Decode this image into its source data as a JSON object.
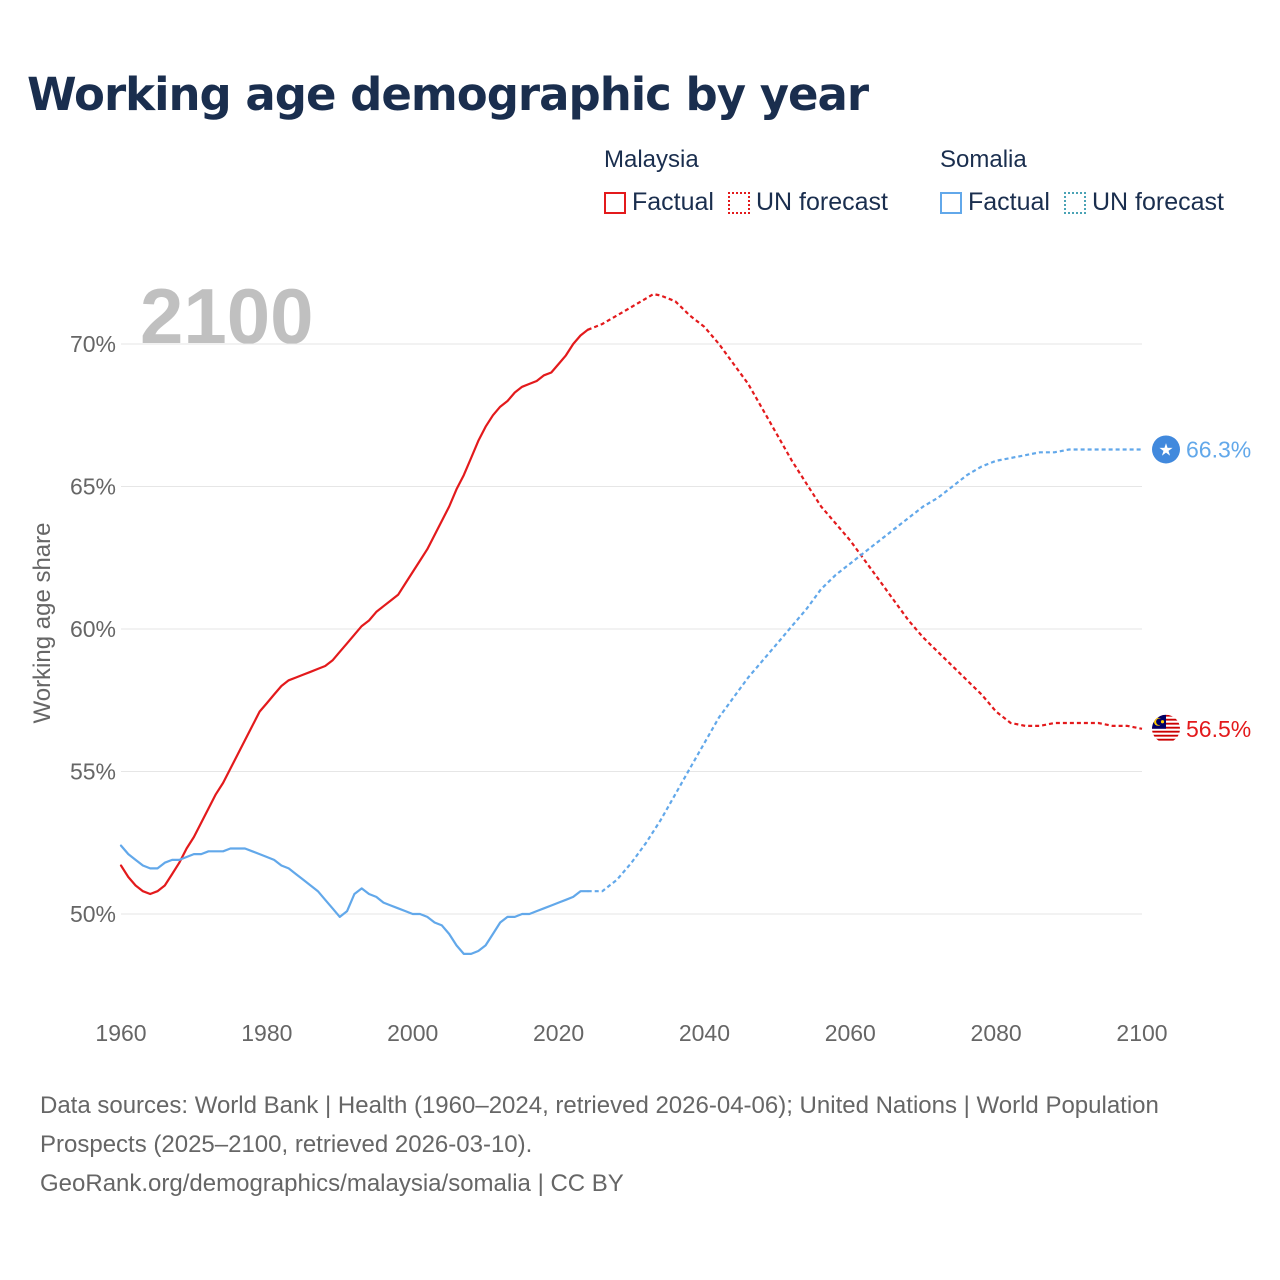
{
  "title": "Working age demographic by year",
  "legend": {
    "malaysia": {
      "country": "Malaysia",
      "factual": "Factual",
      "forecast": "UN forecast",
      "color": "#e31a1c"
    },
    "somalia": {
      "country": "Somalia",
      "factual": "Factual",
      "forecast": "UN forecast",
      "color": "#62a8ea"
    }
  },
  "footer": {
    "sources": "Data sources: World Bank | Health (1960–2024, retrieved 2026-04-06); United Nations | World Population Prospects (2025–2100, retrieved 2026-03-10).",
    "link": "GeoRank.org/demographics/malaysia/somalia | CC BY"
  },
  "chart_data": {
    "type": "line",
    "title": "Working age demographic by year",
    "year_label": "2100",
    "xlabel": "",
    "ylabel": "Working age share",
    "xlim": [
      1960,
      2100
    ],
    "ylim": [
      47,
      72.5
    ],
    "x_ticks": [
      1960,
      1980,
      2000,
      2020,
      2040,
      2060,
      2080,
      2100
    ],
    "y_ticks": [
      50,
      55,
      60,
      65,
      70
    ],
    "y_tick_labels": [
      "50%",
      "55%",
      "60%",
      "65%",
      "70%"
    ],
    "grid": true,
    "series": [
      {
        "name": "Malaysia — Factual",
        "country": "Malaysia",
        "kind": "factual",
        "color": "#e31a1c",
        "x": [
          1960,
          1961,
          1962,
          1963,
          1964,
          1965,
          1966,
          1967,
          1968,
          1969,
          1970,
          1971,
          1972,
          1973,
          1974,
          1975,
          1976,
          1977,
          1978,
          1979,
          1980,
          1981,
          1982,
          1983,
          1984,
          1985,
          1986,
          1987,
          1988,
          1989,
          1990,
          1991,
          1992,
          1993,
          1994,
          1995,
          1996,
          1997,
          1998,
          1999,
          2000,
          2001,
          2002,
          2003,
          2004,
          2005,
          2006,
          2007,
          2008,
          2009,
          2010,
          2011,
          2012,
          2013,
          2014,
          2015,
          2016,
          2017,
          2018,
          2019,
          2020,
          2021,
          2022,
          2023,
          2024
        ],
        "y": [
          51.7,
          51.3,
          51.0,
          50.8,
          50.7,
          50.8,
          51.0,
          51.4,
          51.8,
          52.3,
          52.7,
          53.2,
          53.7,
          54.2,
          54.6,
          55.1,
          55.6,
          56.1,
          56.6,
          57.1,
          57.4,
          57.7,
          58.0,
          58.2,
          58.3,
          58.4,
          58.5,
          58.6,
          58.7,
          58.9,
          59.2,
          59.5,
          59.8,
          60.1,
          60.3,
          60.6,
          60.8,
          61.0,
          61.2,
          61.6,
          62.0,
          62.4,
          62.8,
          63.3,
          63.8,
          64.3,
          64.9,
          65.4,
          66.0,
          66.6,
          67.1,
          67.5,
          67.8,
          68.0,
          68.3,
          68.5,
          68.6,
          68.7,
          68.9,
          69.0,
          69.3,
          69.6,
          70.0,
          70.3,
          70.5
        ]
      },
      {
        "name": "Malaysia — UN forecast",
        "country": "Malaysia",
        "kind": "forecast",
        "color": "#e31a1c",
        "x": [
          2024,
          2026,
          2028,
          2030,
          2032,
          2033,
          2034,
          2036,
          2038,
          2040,
          2042,
          2044,
          2046,
          2048,
          2050,
          2052,
          2054,
          2056,
          2058,
          2060,
          2062,
          2064,
          2066,
          2068,
          2070,
          2072,
          2074,
          2076,
          2078,
          2080,
          2082,
          2084,
          2086,
          2088,
          2090,
          2092,
          2094,
          2096,
          2098,
          2100
        ],
        "y": [
          70.5,
          70.7,
          71.0,
          71.3,
          71.6,
          71.75,
          71.7,
          71.5,
          71.0,
          70.6,
          70.0,
          69.3,
          68.6,
          67.7,
          66.8,
          65.9,
          65.1,
          64.3,
          63.7,
          63.1,
          62.4,
          61.7,
          61.0,
          60.3,
          59.7,
          59.2,
          58.7,
          58.2,
          57.7,
          57.1,
          56.7,
          56.6,
          56.6,
          56.7,
          56.7,
          56.7,
          56.7,
          56.6,
          56.6,
          56.5
        ]
      },
      {
        "name": "Somalia — Factual",
        "country": "Somalia",
        "kind": "factual",
        "color": "#62a8ea",
        "x": [
          1960,
          1961,
          1962,
          1963,
          1964,
          1965,
          1966,
          1967,
          1968,
          1969,
          1970,
          1971,
          1972,
          1973,
          1974,
          1975,
          1976,
          1977,
          1978,
          1979,
          1980,
          1981,
          1982,
          1983,
          1984,
          1985,
          1986,
          1987,
          1988,
          1989,
          1990,
          1991,
          1992,
          1993,
          1994,
          1995,
          1996,
          1997,
          1998,
          1999,
          2000,
          2001,
          2002,
          2003,
          2004,
          2005,
          2006,
          2007,
          2008,
          2009,
          2010,
          2011,
          2012,
          2013,
          2014,
          2015,
          2016,
          2017,
          2018,
          2019,
          2020,
          2021,
          2022,
          2023,
          2024
        ],
        "y": [
          52.4,
          52.1,
          51.9,
          51.7,
          51.6,
          51.6,
          51.8,
          51.9,
          51.9,
          52.0,
          52.1,
          52.1,
          52.2,
          52.2,
          52.2,
          52.3,
          52.3,
          52.3,
          52.2,
          52.1,
          52.0,
          51.9,
          51.7,
          51.6,
          51.4,
          51.2,
          51.0,
          50.8,
          50.5,
          50.2,
          49.9,
          50.1,
          50.7,
          50.9,
          50.7,
          50.6,
          50.4,
          50.3,
          50.2,
          50.1,
          50.0,
          50.0,
          49.9,
          49.7,
          49.6,
          49.3,
          48.9,
          48.6,
          48.6,
          48.7,
          48.9,
          49.3,
          49.7,
          49.9,
          49.9,
          50.0,
          50.0,
          50.1,
          50.2,
          50.3,
          50.4,
          50.5,
          50.6,
          50.8,
          50.8
        ]
      },
      {
        "name": "Somalia — UN forecast",
        "country": "Somalia",
        "kind": "forecast",
        "color": "#62a8ea",
        "x": [
          2024,
          2026,
          2028,
          2030,
          2032,
          2034,
          2036,
          2038,
          2040,
          2042,
          2044,
          2046,
          2048,
          2050,
          2052,
          2054,
          2056,
          2058,
          2060,
          2062,
          2064,
          2066,
          2068,
          2070,
          2072,
          2074,
          2076,
          2078,
          2080,
          2082,
          2084,
          2086,
          2088,
          2090,
          2092,
          2094,
          2096,
          2098,
          2100
        ],
        "y": [
          50.8,
          50.8,
          51.2,
          51.8,
          52.5,
          53.3,
          54.2,
          55.1,
          56.0,
          56.9,
          57.6,
          58.3,
          58.9,
          59.5,
          60.1,
          60.7,
          61.4,
          61.9,
          62.3,
          62.7,
          63.1,
          63.5,
          63.9,
          64.3,
          64.6,
          65.0,
          65.4,
          65.7,
          65.9,
          66.0,
          66.1,
          66.2,
          66.2,
          66.3,
          66.3,
          66.3,
          66.3,
          66.3,
          66.3
        ]
      }
    ],
    "end_labels": [
      {
        "country": "Somalia",
        "value": 66.3,
        "text": "66.3%",
        "color": "#62a8ea"
      },
      {
        "country": "Malaysia",
        "value": 56.5,
        "text": "56.5%",
        "color": "#e31a1c"
      }
    ]
  }
}
